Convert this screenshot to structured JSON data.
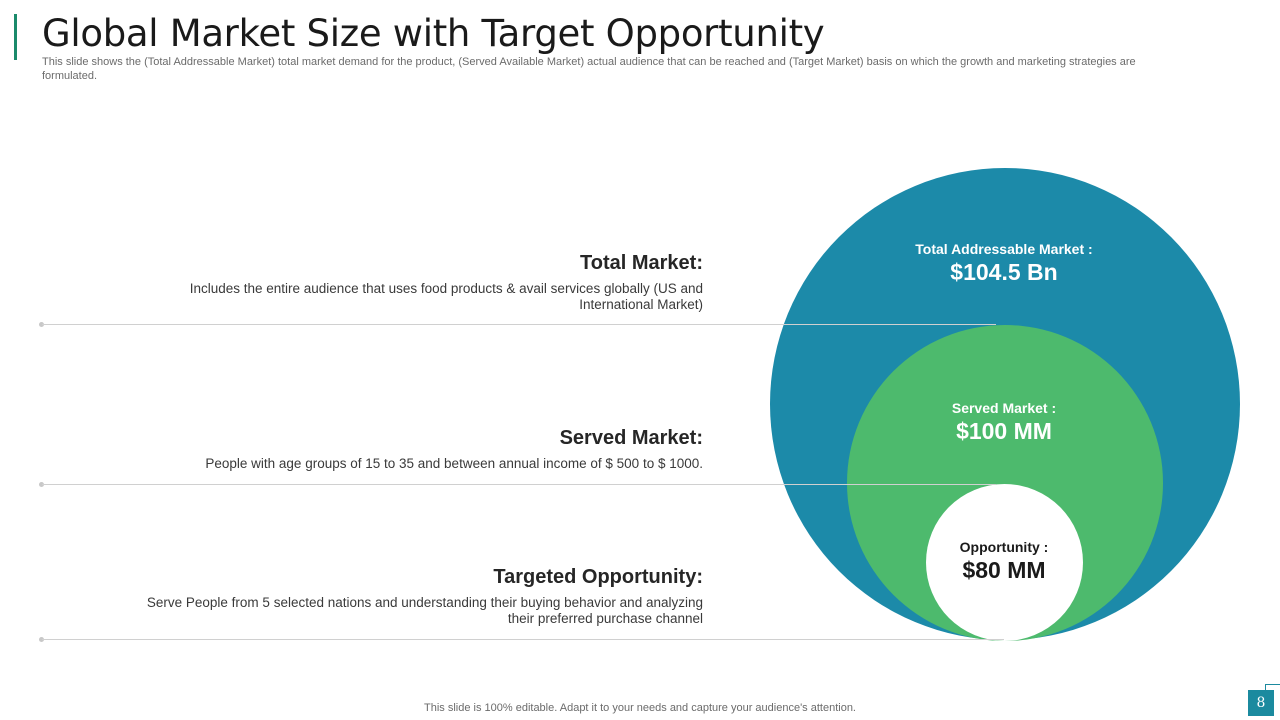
{
  "slide": {
    "title": "Global Market Size with Target Opportunity",
    "subtitle": "This slide shows the (Total Addressable Market) total market demand for the product, (Served Available Market) actual audience that can be reached and (Target Market) basis on which the growth and marketing strategies are formulated.",
    "footer": "This slide is 100% editable. Adapt it to your needs and capture your audience's attention.",
    "page_number": "8"
  },
  "rows": [
    {
      "title": "Total Market:",
      "description": "Includes the entire audience that uses food products & avail services globally (US and International Market)"
    },
    {
      "title": "Served Market:",
      "description": "People with age groups of 15 to 35 and between annual income of $ 500 to $ 1000."
    },
    {
      "title": "Targeted Opportunity:",
      "description": "Serve People from 5 selected nations and understanding their buying behavior and analyzing their preferred purchase channel"
    }
  ],
  "circles": {
    "total": {
      "label": "Total Addressable Market :",
      "value": "$104.5 Bn"
    },
    "served": {
      "label": "Served Market :",
      "value": "$100 MM"
    },
    "opportunity": {
      "label": "Opportunity :",
      "value": "$80 MM"
    }
  },
  "colors": {
    "total_circle": "#1c8aa9",
    "served_circle": "#4dba6d",
    "opportunity_circle": "#ffffff",
    "accent": "#1b8a6b"
  }
}
